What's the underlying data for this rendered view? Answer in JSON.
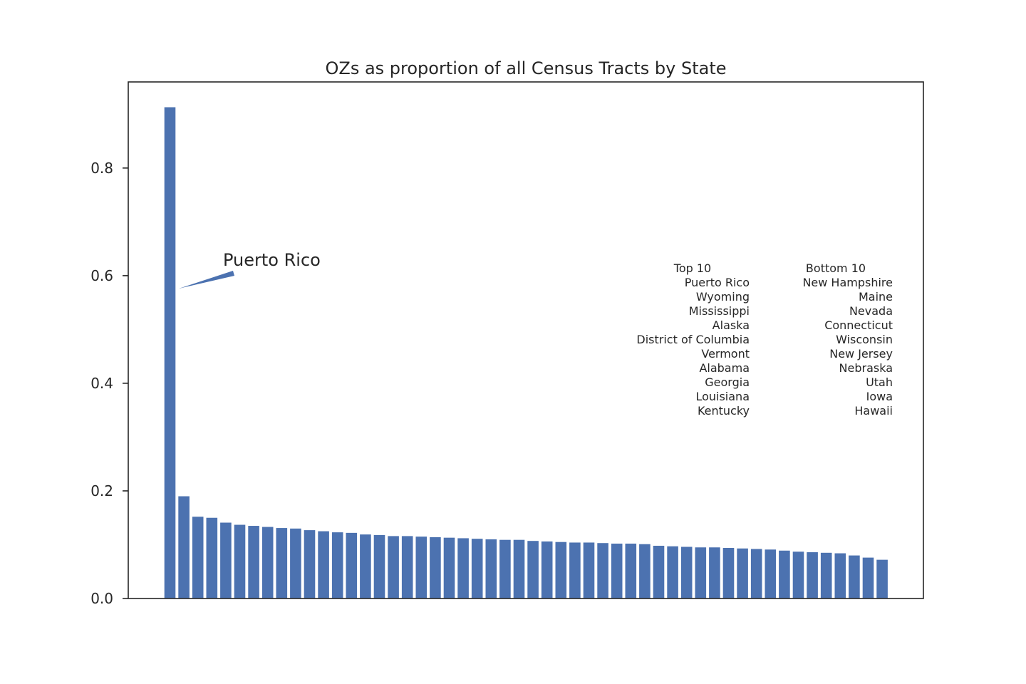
{
  "chart_data": {
    "type": "bar",
    "title": "OZs as proportion of all Census Tracts by State",
    "xlabel": "",
    "ylabel": "",
    "ylim": [
      0,
      0.96
    ],
    "yticks": [
      0.0,
      0.2,
      0.4,
      0.6,
      0.8
    ],
    "ytick_labels": [
      "0.0",
      "0.2",
      "0.4",
      "0.6",
      "0.8"
    ],
    "grid": false,
    "bar_color": "#4c72b0",
    "values": [
      0.913,
      0.19,
      0.152,
      0.15,
      0.141,
      0.137,
      0.135,
      0.133,
      0.131,
      0.13,
      0.127,
      0.125,
      0.123,
      0.122,
      0.119,
      0.118,
      0.116,
      0.116,
      0.115,
      0.114,
      0.113,
      0.112,
      0.111,
      0.11,
      0.109,
      0.109,
      0.107,
      0.106,
      0.105,
      0.104,
      0.104,
      0.103,
      0.102,
      0.102,
      0.101,
      0.098,
      0.097,
      0.096,
      0.095,
      0.095,
      0.094,
      0.093,
      0.092,
      0.091,
      0.089,
      0.087,
      0.086,
      0.085,
      0.084,
      0.08,
      0.076,
      0.072
    ],
    "annotation": {
      "text": "Puerto Rico",
      "value": 0.913
    },
    "top10_heading": "Top 10",
    "top10": [
      "Puerto Rico",
      "Wyoming",
      "Mississippi",
      "Alaska",
      "District of Columbia",
      "Vermont",
      "Alabama",
      "Georgia",
      "Louisiana",
      "Kentucky"
    ],
    "bottom10_heading": "Bottom 10",
    "bottom10": [
      "New Hampshire",
      "Maine",
      "Nevada",
      "Connecticut",
      "Wisconsin",
      "New Jersey",
      "Nebraska",
      "Utah",
      "Iowa",
      "Hawaii"
    ]
  }
}
